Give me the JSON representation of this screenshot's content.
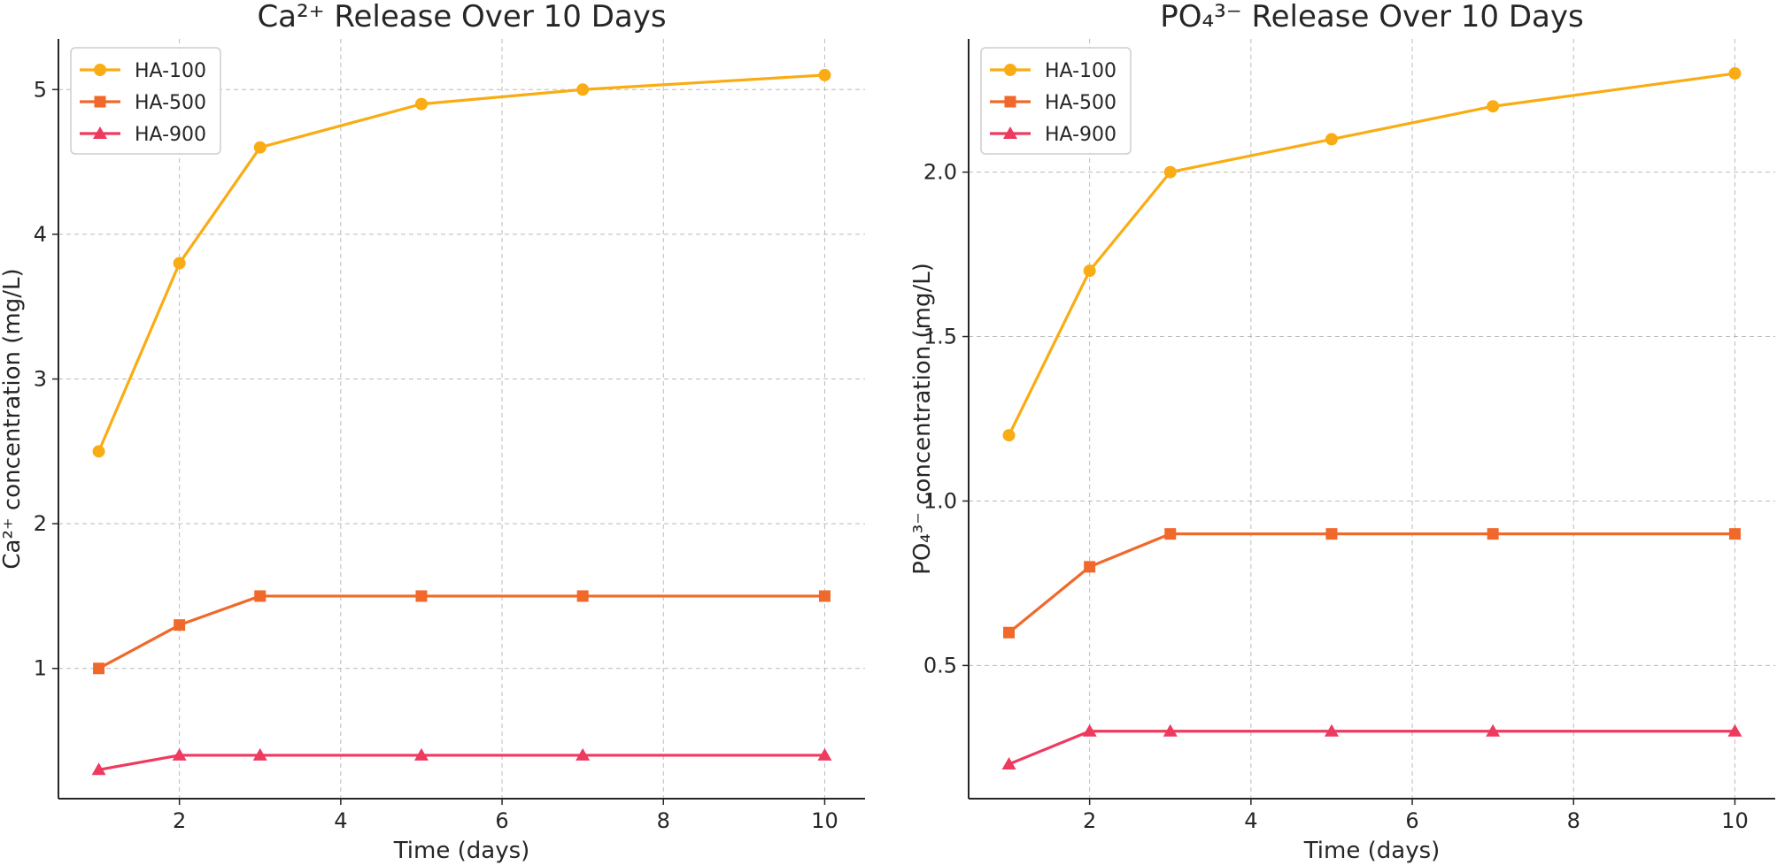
{
  "chart_data": [
    {
      "type": "line",
      "title": "Ca²⁺ Release Over 10 Days",
      "xlabel": "Time (days)",
      "ylabel": "Ca²⁺ concentration (mg/L)",
      "x": [
        1,
        2,
        3,
        5,
        7,
        10
      ],
      "xlim": [
        0.5,
        10.5
      ],
      "ylim": [
        0.1,
        5.35
      ],
      "xticks": [
        2,
        4,
        6,
        8,
        10
      ],
      "yticks": [
        1,
        2,
        3,
        4,
        5
      ],
      "xtick_labels": [
        "2",
        "4",
        "6",
        "8",
        "10"
      ],
      "ytick_labels": [
        "1",
        "2",
        "3",
        "4",
        "5"
      ],
      "grid": true,
      "legend_position": "top-left",
      "series": [
        {
          "name": "HA-100",
          "marker": "circle",
          "color": "#F9AC13",
          "values": [
            2.5,
            3.8,
            4.6,
            4.9,
            5.0,
            5.1
          ]
        },
        {
          "name": "HA-500",
          "marker": "square",
          "color": "#F0682A",
          "values": [
            1.0,
            1.3,
            1.5,
            1.5,
            1.5,
            1.5
          ]
        },
        {
          "name": "HA-900",
          "marker": "triangle",
          "color": "#EE3A5F",
          "values": [
            0.3,
            0.4,
            0.4,
            0.4,
            0.4,
            0.4
          ]
        }
      ]
    },
    {
      "type": "line",
      "title": "PO₄³⁻ Release Over 10 Days",
      "xlabel": "Time (days)",
      "ylabel": "PO₄³⁻ concentration (mg/L)",
      "x": [
        1,
        2,
        3,
        5,
        7,
        10
      ],
      "xlim": [
        0.5,
        10.5
      ],
      "ylim": [
        0.095,
        2.405
      ],
      "xticks": [
        2,
        4,
        6,
        8,
        10
      ],
      "yticks": [
        0.5,
        1.0,
        1.5,
        2.0
      ],
      "xtick_labels": [
        "2",
        "4",
        "6",
        "8",
        "10"
      ],
      "ytick_labels": [
        "0.5",
        "1.0",
        "1.5",
        "2.0"
      ],
      "grid": true,
      "legend_position": "top-left",
      "series": [
        {
          "name": "HA-100",
          "marker": "circle",
          "color": "#F9AC13",
          "values": [
            1.2,
            1.7,
            2.0,
            2.1,
            2.2,
            2.3
          ]
        },
        {
          "name": "HA-500",
          "marker": "square",
          "color": "#F0682A",
          "values": [
            0.6,
            0.8,
            0.9,
            0.9,
            0.9,
            0.9
          ]
        },
        {
          "name": "HA-900",
          "marker": "triangle",
          "color": "#EE3A5F",
          "values": [
            0.2,
            0.3,
            0.3,
            0.3,
            0.3,
            0.3
          ]
        }
      ]
    }
  ]
}
